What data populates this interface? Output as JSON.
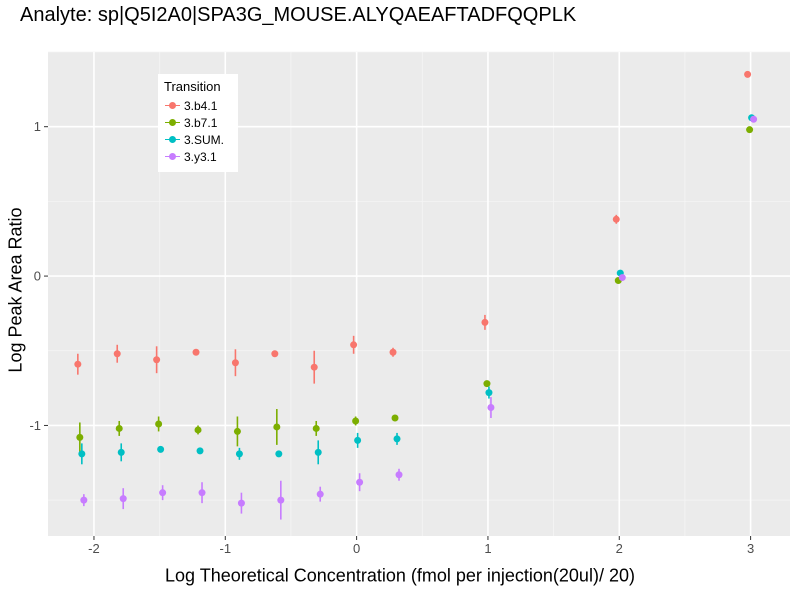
{
  "chart_data": {
    "type": "scatter",
    "title": "Analyte: sp|Q5I2A0|SPA3G_MOUSE.ALYQAEAFTADFQQPLK",
    "xlabel": "Log Theoretical Concentration (fmol per injection(20ul)/ 20)",
    "ylabel": "Log Peak Area Ratio",
    "xlim": [
      -2.35,
      3.3
    ],
    "ylim": [
      -1.74,
      1.5
    ],
    "xticks": [
      -2,
      -1,
      0,
      1,
      2,
      3
    ],
    "xtick_labels": [
      "-2",
      "-1",
      "0",
      "1",
      "2",
      "3"
    ],
    "yticks": [
      -1,
      0,
      1
    ],
    "ytick_labels": [
      "-1",
      "0",
      "1"
    ],
    "grid": true,
    "background": "#ebebeb",
    "legend": {
      "title": "Transition",
      "position": "top-left"
    },
    "series": [
      {
        "name": "3.b4.1",
        "color": "#f8766d",
        "x": [
          -2.1,
          -1.8,
          -1.5,
          -1.2,
          -0.9,
          -0.6,
          -0.3,
          0.0,
          0.3,
          1.0,
          2.0,
          3.0
        ],
        "y": [
          -0.59,
          -0.52,
          -0.56,
          -0.51,
          -0.58,
          -0.52,
          -0.61,
          -0.46,
          -0.51,
          -0.31,
          0.38,
          1.35
        ],
        "err": [
          0.07,
          0.06,
          0.09,
          0.02,
          0.09,
          0.02,
          0.11,
          0.06,
          0.03,
          0.05,
          0.03,
          0.02
        ]
      },
      {
        "name": "3.b7.1",
        "color": "#7cae00",
        "x": [
          -2.1,
          -1.8,
          -1.5,
          -1.2,
          -0.9,
          -0.6,
          -0.3,
          0.0,
          0.3,
          1.0,
          2.0,
          3.0
        ],
        "y": [
          -1.08,
          -1.02,
          -0.99,
          -1.03,
          -1.04,
          -1.01,
          -1.02,
          -0.97,
          -0.95,
          -0.72,
          -0.03,
          0.98
        ],
        "err": [
          0.1,
          0.05,
          0.05,
          0.03,
          0.1,
          0.12,
          0.05,
          0.03,
          0.02,
          0.02,
          0.02,
          0.02
        ]
      },
      {
        "name": "3.SUM.",
        "color": "#00bfc4",
        "x": [
          -2.1,
          -1.8,
          -1.5,
          -1.2,
          -0.9,
          -0.6,
          -0.3,
          0.0,
          0.3,
          1.0,
          2.0,
          3.0
        ],
        "y": [
          -1.19,
          -1.18,
          -1.16,
          -1.17,
          -1.19,
          -1.19,
          -1.18,
          -1.1,
          -1.09,
          -0.78,
          0.02,
          1.06
        ],
        "err": [
          0.07,
          0.06,
          0.02,
          0.02,
          0.04,
          0.02,
          0.08,
          0.05,
          0.04,
          0.04,
          0.02,
          0.02
        ]
      },
      {
        "name": "3.y3.1",
        "color": "#c77cff",
        "x": [
          -2.1,
          -1.8,
          -1.5,
          -1.2,
          -0.9,
          -0.6,
          -0.3,
          0.0,
          0.3,
          1.0,
          2.0,
          3.0
        ],
        "y": [
          -1.5,
          -1.49,
          -1.45,
          -1.45,
          -1.52,
          -1.5,
          -1.46,
          -1.38,
          -1.33,
          -0.88,
          -0.01,
          1.05
        ],
        "err": [
          0.04,
          0.07,
          0.05,
          0.07,
          0.07,
          0.13,
          0.05,
          0.06,
          0.04,
          0.07,
          0.02,
          0.02
        ]
      }
    ]
  }
}
